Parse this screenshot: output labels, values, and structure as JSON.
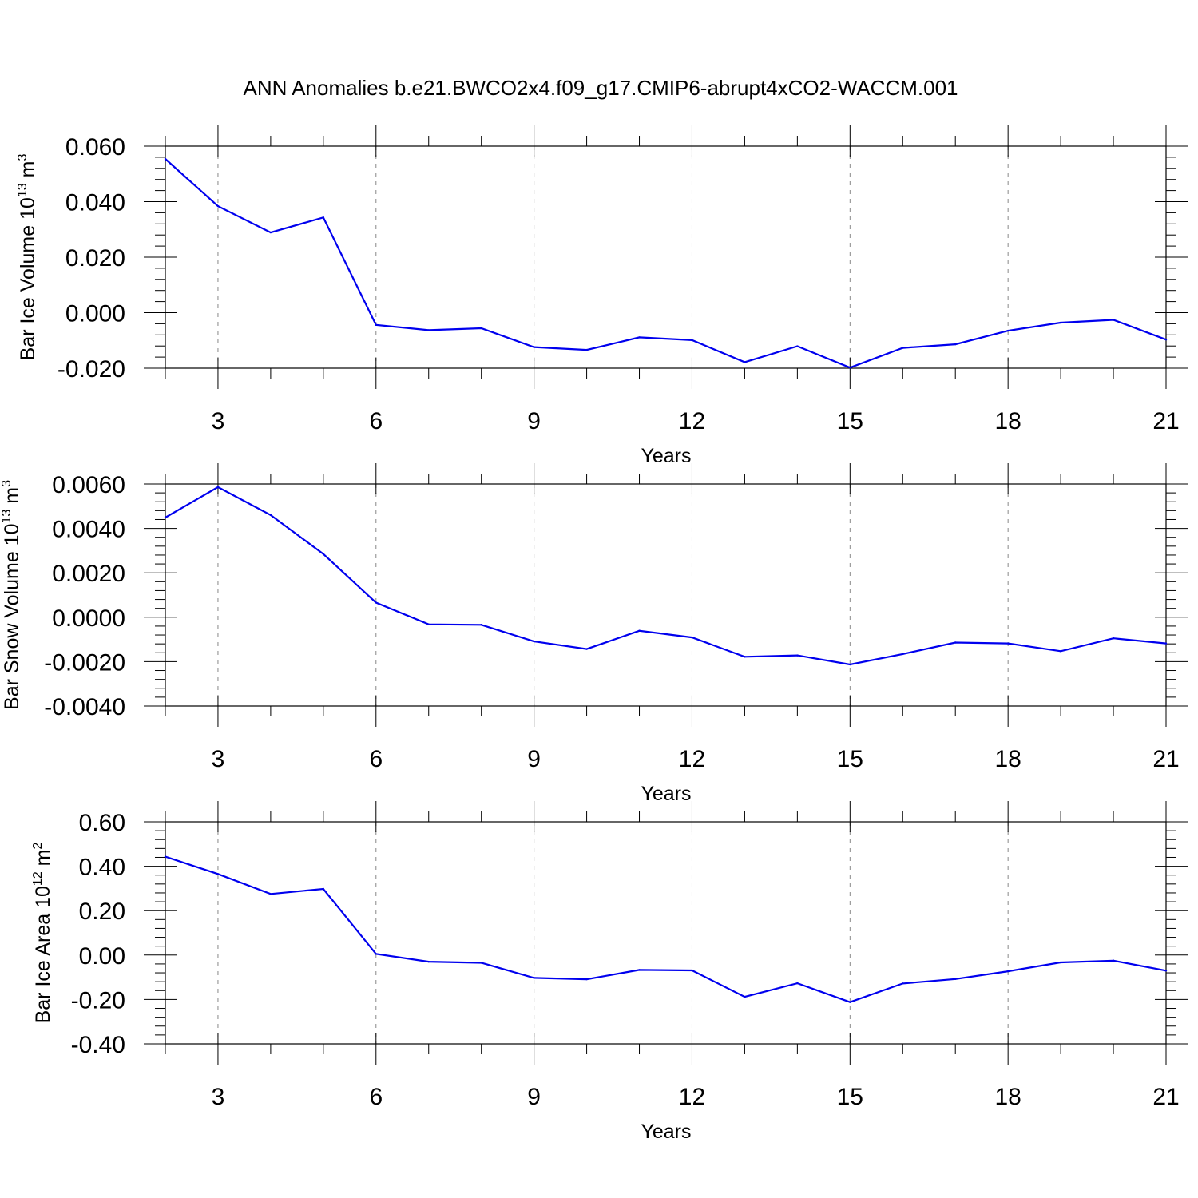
{
  "title": "ANN Anomalies b.e21.BWCO2x4.f09_g17.CMIP6-abrupt4xCO2-WACCM.001",
  "colors": {
    "series": "#0000ee",
    "grid": "#888888",
    "frame": "#000000"
  },
  "chart_data": [
    {
      "type": "line",
      "xlabel": "Years",
      "ylabel": {
        "text": "Bar Ice Volume 10",
        "exponent": "13",
        "unit": " m",
        "unit_exponent": "3"
      },
      "xlim": [
        2,
        21
      ],
      "ylim": [
        -0.02,
        0.06
      ],
      "x_ticks": [
        3,
        6,
        9,
        12,
        15,
        18,
        21
      ],
      "y_ticks": [
        0.06,
        0.04,
        0.02,
        0.0,
        -0.02
      ],
      "y_tick_labels": [
        "0.060",
        "0.040",
        "0.020",
        "0.000",
        "-0.020"
      ],
      "grid": "vertical dashed at major x ticks",
      "x": [
        2,
        3,
        4,
        5,
        6,
        7,
        8,
        9,
        10,
        11,
        12,
        13,
        14,
        15,
        16,
        17,
        18,
        19,
        20,
        21
      ],
      "y": [
        0.0554,
        0.0384,
        0.0289,
        0.0343,
        -0.0044,
        -0.0063,
        -0.0056,
        -0.0124,
        -0.0134,
        -0.0089,
        -0.0099,
        -0.0178,
        -0.0121,
        -0.0198,
        -0.0127,
        -0.0114,
        -0.0065,
        -0.0036,
        -0.0026,
        -0.0097
      ]
    },
    {
      "type": "line",
      "xlabel": "Years",
      "ylabel": {
        "text": "Bar Snow Volume 10",
        "exponent": "13",
        "unit": " m",
        "unit_exponent": "3"
      },
      "xlim": [
        2,
        21
      ],
      "ylim": [
        -0.004,
        0.006
      ],
      "x_ticks": [
        3,
        6,
        9,
        12,
        15,
        18,
        21
      ],
      "y_ticks": [
        0.006,
        0.004,
        0.002,
        0.0,
        -0.002,
        -0.004
      ],
      "y_tick_labels": [
        "0.0060",
        "0.0040",
        "0.0020",
        "0.0000",
        "-0.0020",
        "-0.0040"
      ],
      "grid": "vertical dashed at major x ticks",
      "x": [
        2,
        3,
        4,
        5,
        6,
        7,
        8,
        9,
        10,
        11,
        12,
        13,
        14,
        15,
        16,
        17,
        18,
        19,
        20,
        21
      ],
      "y": [
        0.00449,
        0.00586,
        0.0046,
        0.00285,
        0.00066,
        -0.00032,
        -0.00034,
        -0.00109,
        -0.00143,
        -0.00061,
        -0.00091,
        -0.00178,
        -0.00172,
        -0.00213,
        -0.00166,
        -0.00114,
        -0.00118,
        -0.00153,
        -0.00095,
        -0.00118
      ]
    },
    {
      "type": "line",
      "xlabel": "Years",
      "ylabel": {
        "text": "Bar Ice Area 10",
        "exponent": "12",
        "unit": " m",
        "unit_exponent": "2"
      },
      "xlim": [
        2,
        21
      ],
      "ylim": [
        -0.4,
        0.6
      ],
      "x_ticks": [
        3,
        6,
        9,
        12,
        15,
        18,
        21
      ],
      "y_ticks": [
        0.6,
        0.4,
        0.2,
        0.0,
        -0.2,
        -0.4
      ],
      "y_tick_labels": [
        "0.60",
        "0.40",
        "0.20",
        "0.00",
        "-0.20",
        "-0.40"
      ],
      "grid": "vertical dashed at major x ticks",
      "x": [
        2,
        3,
        4,
        5,
        6,
        7,
        8,
        9,
        10,
        11,
        12,
        13,
        14,
        15,
        16,
        17,
        18,
        19,
        20,
        21
      ],
      "y": [
        0.443,
        0.365,
        0.275,
        0.298,
        0.005,
        -0.03,
        -0.035,
        -0.103,
        -0.109,
        -0.067,
        -0.069,
        -0.188,
        -0.127,
        -0.212,
        -0.128,
        -0.108,
        -0.073,
        -0.033,
        -0.025,
        -0.07
      ]
    }
  ]
}
